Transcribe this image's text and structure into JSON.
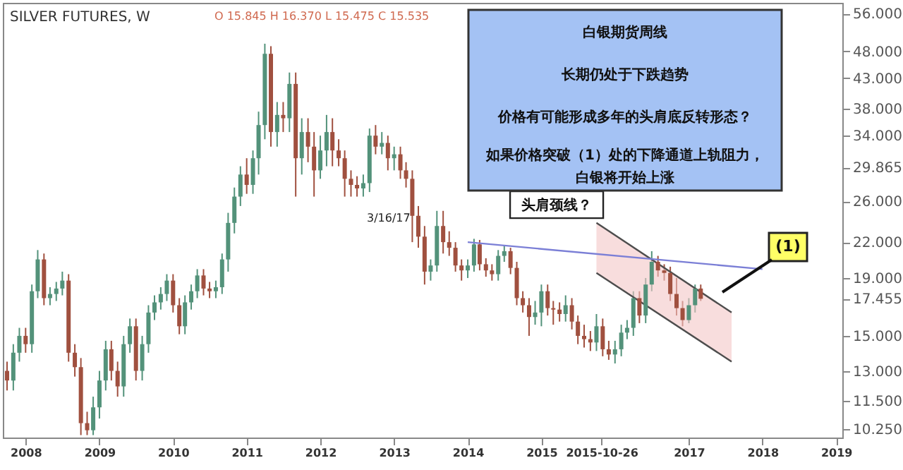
{
  "chart_data": {
    "type": "candlestick",
    "title": "SILVER FUTURES, W",
    "subtitle": "O 15.845 H 16.370 L 15.475 C 15.535",
    "x": [
      "2007-10",
      "2007-11",
      "2007-12",
      "2008-01",
      "2008-02",
      "2008-03",
      "2008-04",
      "2008-05",
      "2008-06",
      "2008-07",
      "2008-08",
      "2008-09",
      "2008-10",
      "2008-11",
      "2008-12",
      "2009-01",
      "2009-02",
      "2009-03",
      "2009-04",
      "2009-05",
      "2009-06",
      "2009-07",
      "2009-08",
      "2009-09",
      "2009-10",
      "2009-11",
      "2009-12",
      "2010-01",
      "2010-02",
      "2010-03",
      "2010-04",
      "2010-05",
      "2010-06",
      "2010-07",
      "2010-08",
      "2010-09",
      "2010-10",
      "2010-11",
      "2010-12",
      "2011-01",
      "2011-02",
      "2011-03",
      "2011-04",
      "2011-05",
      "2011-06",
      "2011-07",
      "2011-08",
      "2011-09",
      "2011-10",
      "2011-11",
      "2011-12",
      "2012-01",
      "2012-02",
      "2012-03",
      "2012-04",
      "2012-05",
      "2012-06",
      "2012-07",
      "2012-08",
      "2012-09",
      "2012-10",
      "2012-11",
      "2012-12",
      "2013-01",
      "2013-02",
      "2013-03",
      "2013-04",
      "2013-05",
      "2013-06",
      "2013-07",
      "2013-08",
      "2013-09",
      "2013-10",
      "2013-11",
      "2013-12",
      "2014-01",
      "2014-02",
      "2014-03",
      "2014-04",
      "2014-05",
      "2014-06",
      "2014-07",
      "2014-08",
      "2014-09",
      "2014-10",
      "2014-11",
      "2014-12",
      "2015-01",
      "2015-02",
      "2015-03",
      "2015-04",
      "2015-05",
      "2015-06",
      "2015-07",
      "2015-08",
      "2015-09",
      "2015-10",
      "2015-11",
      "2015-12",
      "2016-01",
      "2016-02",
      "2016-03",
      "2016-04",
      "2016-05",
      "2016-06",
      "2016-07",
      "2016-08",
      "2016-09",
      "2016-10",
      "2016-11",
      "2016-12",
      "2017-01",
      "2017-02",
      "2017-03"
    ],
    "ohlc": [
      [
        13.0,
        13.5,
        12.0,
        12.5
      ],
      [
        12.5,
        14.5,
        12.0,
        14.0
      ],
      [
        14.0,
        15.5,
        13.5,
        15.0
      ],
      [
        15.0,
        15.5,
        14.0,
        14.5
      ],
      [
        14.5,
        18.5,
        14.0,
        18.0
      ],
      [
        18.0,
        21.3,
        17.5,
        20.5
      ],
      [
        20.5,
        21.0,
        17.0,
        17.5
      ],
      [
        17.5,
        18.3,
        17.0,
        17.8
      ],
      [
        17.8,
        18.7,
        17.3,
        18.2
      ],
      [
        18.2,
        19.5,
        17.7,
        18.8
      ],
      [
        18.8,
        19.3,
        13.5,
        14.0
      ],
      [
        14.0,
        14.5,
        12.7,
        13.2
      ],
      [
        13.2,
        13.7,
        10.0,
        10.5
      ],
      [
        10.5,
        11.0,
        10.0,
        10.2
      ],
      [
        10.2,
        11.7,
        10.0,
        11.2
      ],
      [
        11.2,
        13.0,
        10.7,
        12.5
      ],
      [
        12.5,
        14.7,
        12.0,
        14.2
      ],
      [
        14.2,
        14.7,
        12.5,
        13.0
      ],
      [
        13.0,
        13.5,
        11.7,
        12.2
      ],
      [
        12.2,
        15.0,
        11.7,
        14.5
      ],
      [
        14.5,
        16.1,
        14.0,
        15.6
      ],
      [
        15.6,
        16.1,
        12.5,
        13.0
      ],
      [
        13.0,
        15.0,
        12.5,
        14.5
      ],
      [
        14.5,
        17.0,
        14.0,
        16.5
      ],
      [
        16.5,
        17.7,
        16.0,
        17.2
      ],
      [
        17.2,
        18.3,
        16.7,
        17.8
      ],
      [
        17.8,
        19.3,
        17.3,
        18.8
      ],
      [
        18.8,
        19.3,
        16.5,
        17.0
      ],
      [
        17.0,
        17.5,
        15.1,
        15.6
      ],
      [
        15.6,
        17.7,
        15.1,
        17.2
      ],
      [
        17.2,
        18.5,
        16.7,
        18.0
      ],
      [
        18.0,
        19.7,
        17.5,
        19.2
      ],
      [
        19.2,
        19.7,
        17.7,
        18.2
      ],
      [
        18.2,
        18.7,
        17.5,
        18.0
      ],
      [
        18.0,
        18.8,
        17.5,
        18.3
      ],
      [
        18.3,
        21.0,
        17.8,
        20.5
      ],
      [
        20.5,
        24.8,
        19.5,
        23.8
      ],
      [
        23.8,
        27.5,
        22.8,
        26.5
      ],
      [
        26.5,
        30.0,
        25.5,
        29.0
      ],
      [
        29.0,
        31.0,
        26.8,
        27.8
      ],
      [
        27.8,
        32.0,
        26.8,
        31.0
      ],
      [
        31.0,
        37.5,
        29.0,
        35.5
      ],
      [
        35.5,
        49.5,
        33.5,
        47.5
      ],
      [
        47.5,
        49.0,
        32.5,
        34.5
      ],
      [
        34.5,
        39.0,
        32.5,
        37.0
      ],
      [
        37.0,
        39.0,
        34.5,
        36.5
      ],
      [
        36.5,
        44.0,
        34.5,
        42.0
      ],
      [
        42.0,
        44.0,
        26.5,
        31.0
      ],
      [
        31.0,
        36.5,
        29.0,
        34.5
      ],
      [
        34.5,
        36.5,
        30.5,
        32.5
      ],
      [
        32.5,
        34.5,
        26.5,
        29.5
      ],
      [
        29.5,
        34.0,
        28.5,
        32.0
      ],
      [
        32.0,
        37.0,
        30.0,
        34.5
      ],
      [
        34.5,
        36.5,
        30.0,
        32.0
      ],
      [
        32.0,
        33.5,
        30.0,
        31.0
      ],
      [
        31.0,
        32.0,
        26.5,
        28.5
      ],
      [
        28.5,
        29.5,
        26.5,
        27.8
      ],
      [
        27.8,
        28.8,
        26.5,
        27.4
      ],
      [
        27.4,
        29.0,
        26.5,
        28.0
      ],
      [
        28.0,
        35.0,
        27.0,
        34.0
      ],
      [
        34.0,
        35.5,
        31.5,
        32.5
      ],
      [
        32.5,
        34.5,
        31.5,
        33.0
      ],
      [
        33.0,
        34.0,
        29.5,
        31.0
      ],
      [
        31.0,
        32.5,
        29.5,
        31.5
      ],
      [
        31.5,
        32.5,
        28.5,
        29.5
      ],
      [
        29.5,
        30.5,
        27.5,
        28.5
      ],
      [
        28.5,
        29.5,
        22.0,
        24.5
      ],
      [
        24.5,
        25.5,
        21.5,
        22.5
      ],
      [
        22.5,
        23.5,
        18.5,
        19.5
      ],
      [
        19.5,
        20.5,
        18.8,
        20.0
      ],
      [
        20.0,
        25.0,
        19.5,
        23.5
      ],
      [
        23.5,
        25.0,
        21.0,
        22.0
      ],
      [
        22.0,
        23.0,
        20.8,
        21.5
      ],
      [
        21.5,
        22.0,
        19.5,
        20.0
      ],
      [
        20.0,
        20.5,
        18.8,
        19.6
      ],
      [
        19.6,
        20.5,
        19.0,
        20.0
      ],
      [
        20.0,
        22.3,
        19.5,
        21.8
      ],
      [
        21.8,
        22.2,
        19.6,
        20.1
      ],
      [
        20.1,
        20.6,
        19.1,
        19.6
      ],
      [
        19.6,
        20.1,
        18.8,
        19.3
      ],
      [
        19.3,
        21.3,
        18.8,
        20.8
      ],
      [
        20.8,
        21.7,
        20.3,
        21.2
      ],
      [
        21.2,
        21.5,
        19.3,
        19.8
      ],
      [
        19.8,
        20.3,
        17.0,
        17.5
      ],
      [
        17.5,
        18.0,
        16.5,
        17.0
      ],
      [
        17.0,
        17.5,
        15.0,
        16.2
      ],
      [
        16.2,
        17.3,
        15.7,
        16.5
      ],
      [
        16.5,
        18.5,
        15.6,
        18.0
      ],
      [
        18.0,
        18.5,
        16.3,
        16.8
      ],
      [
        16.8,
        17.3,
        15.7,
        16.7
      ],
      [
        16.7,
        17.2,
        15.9,
        16.4
      ],
      [
        16.4,
        17.7,
        15.9,
        17.0
      ],
      [
        17.0,
        17.5,
        15.4,
        15.9
      ],
      [
        15.9,
        16.3,
        14.5,
        15.0
      ],
      [
        15.0,
        15.7,
        14.3,
        14.8
      ],
      [
        14.8,
        15.3,
        14.1,
        14.6
      ],
      [
        14.6,
        16.4,
        14.1,
        15.6
      ],
      [
        15.6,
        16.1,
        13.8,
        14.2
      ],
      [
        14.2,
        14.7,
        13.6,
        13.9
      ],
      [
        13.9,
        14.7,
        13.4,
        14.2
      ],
      [
        14.2,
        15.7,
        13.8,
        15.2
      ],
      [
        15.2,
        16.0,
        14.8,
        15.5
      ],
      [
        15.5,
        18.0,
        15.0,
        17.5
      ],
      [
        17.5,
        18.0,
        15.8,
        16.3
      ],
      [
        16.3,
        19.0,
        15.8,
        18.5
      ],
      [
        18.5,
        21.2,
        18.0,
        20.3
      ],
      [
        20.3,
        20.8,
        19.1,
        19.6
      ],
      [
        19.6,
        20.1,
        18.8,
        19.4
      ],
      [
        19.4,
        19.9,
        17.3,
        17.8
      ],
      [
        17.8,
        19.0,
        16.3,
        16.8
      ],
      [
        16.8,
        17.3,
        15.6,
        16.0
      ],
      [
        16.0,
        17.5,
        15.8,
        17.0
      ],
      [
        17.0,
        18.5,
        16.5,
        18.2
      ],
      [
        18.2,
        18.5,
        17.3,
        17.455
      ]
    ],
    "colors": [
      "#a0503f",
      "#53927a",
      "#53927a",
      "#a0503f",
      "#53927a",
      "#53927a",
      "#a0503f",
      "#53927a",
      "#53927a",
      "#53927a",
      "#a0503f",
      "#a0503f",
      "#a0503f",
      "#a0503f",
      "#53927a",
      "#53927a",
      "#53927a",
      "#a0503f",
      "#a0503f",
      "#53927a",
      "#53927a",
      "#a0503f",
      "#53927a",
      "#53927a",
      "#53927a",
      "#53927a",
      "#53927a",
      "#a0503f",
      "#a0503f",
      "#53927a",
      "#53927a",
      "#53927a",
      "#a0503f",
      "#a0503f",
      "#53927a",
      "#53927a",
      "#53927a",
      "#53927a",
      "#53927a",
      "#a0503f",
      "#53927a",
      "#53927a",
      "#53927a",
      "#a0503f",
      "#53927a",
      "#a0503f",
      "#53927a",
      "#a0503f",
      "#53927a",
      "#a0503f",
      "#a0503f",
      "#53927a",
      "#53927a",
      "#a0503f",
      "#a0503f",
      "#a0503f",
      "#a0503f",
      "#a0503f",
      "#53927a",
      "#53927a",
      "#a0503f",
      "#53927a",
      "#a0503f",
      "#53927a",
      "#a0503f",
      "#a0503f",
      "#a0503f",
      "#a0503f",
      "#a0503f",
      "#53927a",
      "#53927a",
      "#a0503f",
      "#a0503f",
      "#a0503f",
      "#a0503f",
      "#53927a",
      "#53927a",
      "#a0503f",
      "#a0503f",
      "#a0503f",
      "#53927a",
      "#53927a",
      "#a0503f",
      "#a0503f",
      "#a0503f",
      "#a0503f",
      "#53927a",
      "#53927a",
      "#a0503f",
      "#a0503f",
      "#a0503f",
      "#53927a",
      "#a0503f",
      "#a0503f",
      "#a0503f",
      "#a0503f",
      "#53927a",
      "#a0503f",
      "#a0503f",
      "#53927a",
      "#53927a",
      "#53927a",
      "#53927a",
      "#a0503f",
      "#53927a",
      "#53927a",
      "#a0503f",
      "#a0503f",
      "#a0503f",
      "#a0503f",
      "#a0503f",
      "#53927a",
      "#53927a",
      "#a0503f"
    ],
    "series": [
      {
        "type": "line",
        "color": "#4d4d4d",
        "x": [
          "2015-10",
          "2017-08"
        ],
        "values": [
          23.8,
          16.5
        ],
        "lower": [
          19.4,
          13.5
        ],
        "upper": [
          23.8,
          16.5
        ]
      },
      {
        "type": "line",
        "color": "#4d4d4d",
        "x": [
          "2015-10",
          "2017-08"
        ],
        "values": [
          19.4,
          13.5
        ]
      },
      {
        "name": "头肩颈线？",
        "type": "line",
        "color": "#7b7fd6",
        "x": [
          "2014-01",
          "2018-01"
        ],
        "values": [
          22.0,
          19.7
        ]
      }
    ],
    "xlim": [
      "2007-09-10",
      "2019-02-01"
    ],
    "xticks": [
      "2008",
      "2009",
      "2010",
      "2011",
      "2012",
      "2013",
      "2014",
      "2015",
      "2015-10-26",
      "2017",
      "2018",
      "2019"
    ],
    "ylim": [
      9.9,
      58.5
    ],
    "log": true,
    "yticks": [
      {
        "value": 10.25,
        "label": "10.250"
      },
      {
        "value": 11.5,
        "label": "11.500"
      },
      {
        "value": 13,
        "label": "13.000"
      },
      {
        "value": 15,
        "label": "15.000"
      },
      {
        "value": 17.455,
        "label": "17.455"
      },
      {
        "value": 19,
        "label": "19.000"
      },
      {
        "value": 22,
        "label": "22.000"
      },
      {
        "value": 26,
        "label": "26.000"
      },
      {
        "value": 29.865,
        "label": "29.865"
      },
      {
        "value": 34,
        "label": "34.000"
      },
      {
        "value": 38,
        "label": "38.000"
      },
      {
        "value": 43,
        "label": "43.000"
      },
      {
        "value": 48,
        "label": "48.000"
      },
      {
        "value": 56,
        "label": "56.000"
      }
    ],
    "grid": false,
    "annotations": [
      "白银期货周线",
      "长期仍处于下跌趋势",
      "价格有可能形成多年的头肩底反转形态？",
      "如果价格突破（1）处的下降通道上轨阻力，白银将开始上涨",
      "(1)",
      "3/16/17"
    ]
  }
}
